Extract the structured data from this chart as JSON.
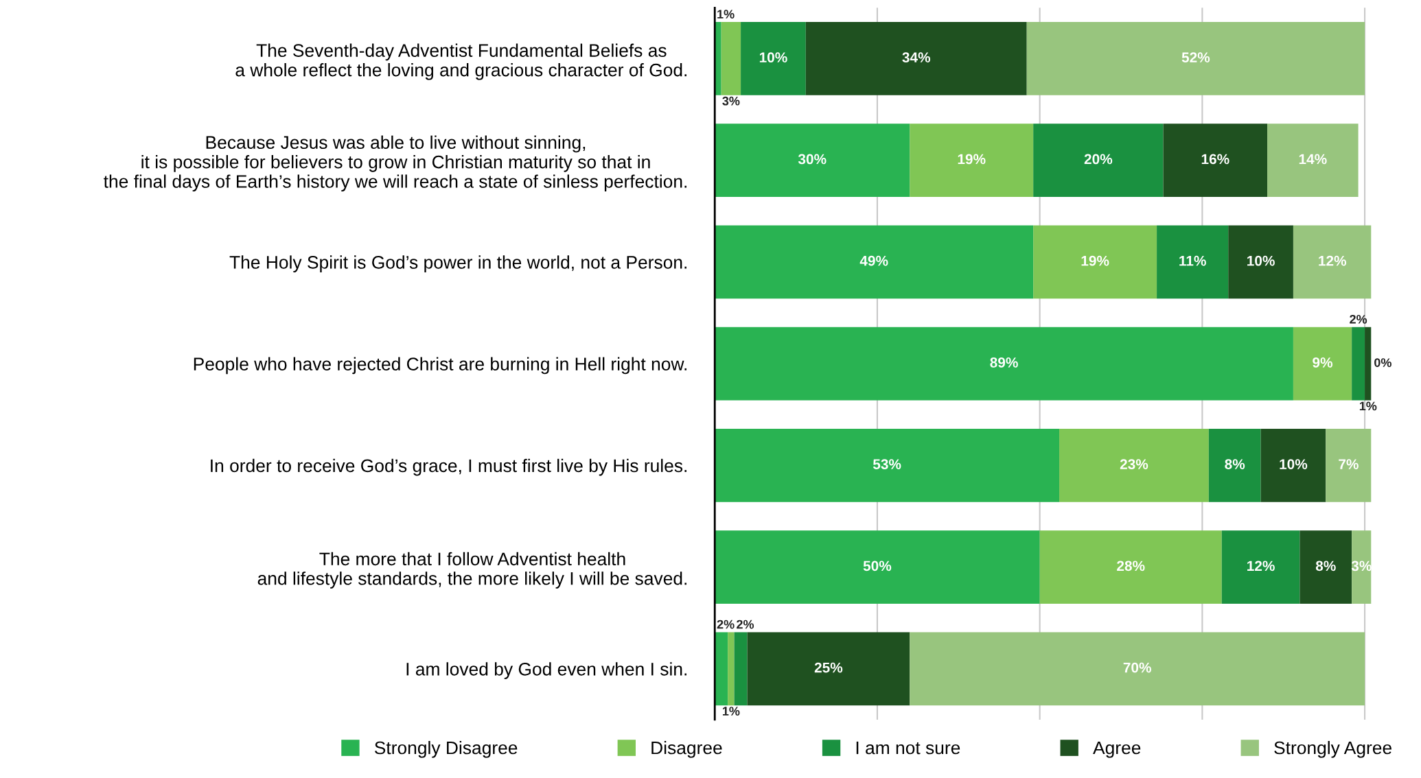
{
  "chart_data": {
    "type": "bar",
    "orientation": "horizontal",
    "stacked": true,
    "categories": [
      "The Seventh-day Adventist Fundamental Beliefs as\na whole reflect the loving and gracious character of God.",
      "Because Jesus was able to live without sinning,\nit is possible for believers to grow in Christian maturity so that in\nthe final days of Earth’s history we will reach a state of sinless perfection.",
      "The Holy Spirit is God’s power in the world, not a Person.",
      "People who have rejected Christ are burning in Hell right now.",
      "In order to receive God’s grace, I must first live by His rules.",
      "The more that I follow Adventist health\nand lifestyle standards, the more likely I will be saved.",
      "I am loved by God even when I sin."
    ],
    "series": [
      {
        "name": "Strongly Disagree",
        "color": "#29b352",
        "values": [
          1,
          30,
          49,
          89,
          53,
          50,
          2
        ],
        "value_labels": [
          "1%",
          "30%",
          "49%",
          "89%",
          "53%",
          "50%",
          "2%"
        ]
      },
      {
        "name": "Disagree",
        "color": "#80c655",
        "values": [
          3,
          19,
          19,
          9,
          23,
          28,
          1
        ],
        "value_labels": [
          "3%",
          "19%",
          "19%",
          "9%",
          "23%",
          "28%",
          "1%"
        ]
      },
      {
        "name": "I am not sure",
        "color": "#1a9140",
        "values": [
          10,
          20,
          11,
          2,
          8,
          12,
          2
        ],
        "value_labels": [
          "10%",
          "20%",
          "11%",
          "2%",
          "8%",
          "12%",
          "2%"
        ]
      },
      {
        "name": "Agree",
        "color": "#1f5120",
        "values": [
          34,
          16,
          10,
          1,
          10,
          8,
          25
        ],
        "value_labels": [
          "34%",
          "16%",
          "10%",
          "1%",
          "10%",
          "8%",
          "25%"
        ]
      },
      {
        "name": "Strongly Agree",
        "color": "#98c57e",
        "values": [
          52,
          14,
          12,
          0,
          7,
          3,
          70
        ],
        "value_labels": [
          "52%",
          "14%",
          "12%",
          "0%",
          "7%",
          "3%",
          "70%"
        ]
      }
    ],
    "xlim": [
      0,
      101
    ],
    "xticks": [
      {
        "value": 0,
        "label": null
      },
      {
        "value": 25,
        "label": null
      },
      {
        "value": 50,
        "label": null
      },
      {
        "value": 75,
        "label": null
      },
      {
        "value": 100,
        "label": null
      }
    ],
    "tick_labels": "y",
    "grid": "x",
    "legend": "bottom"
  }
}
